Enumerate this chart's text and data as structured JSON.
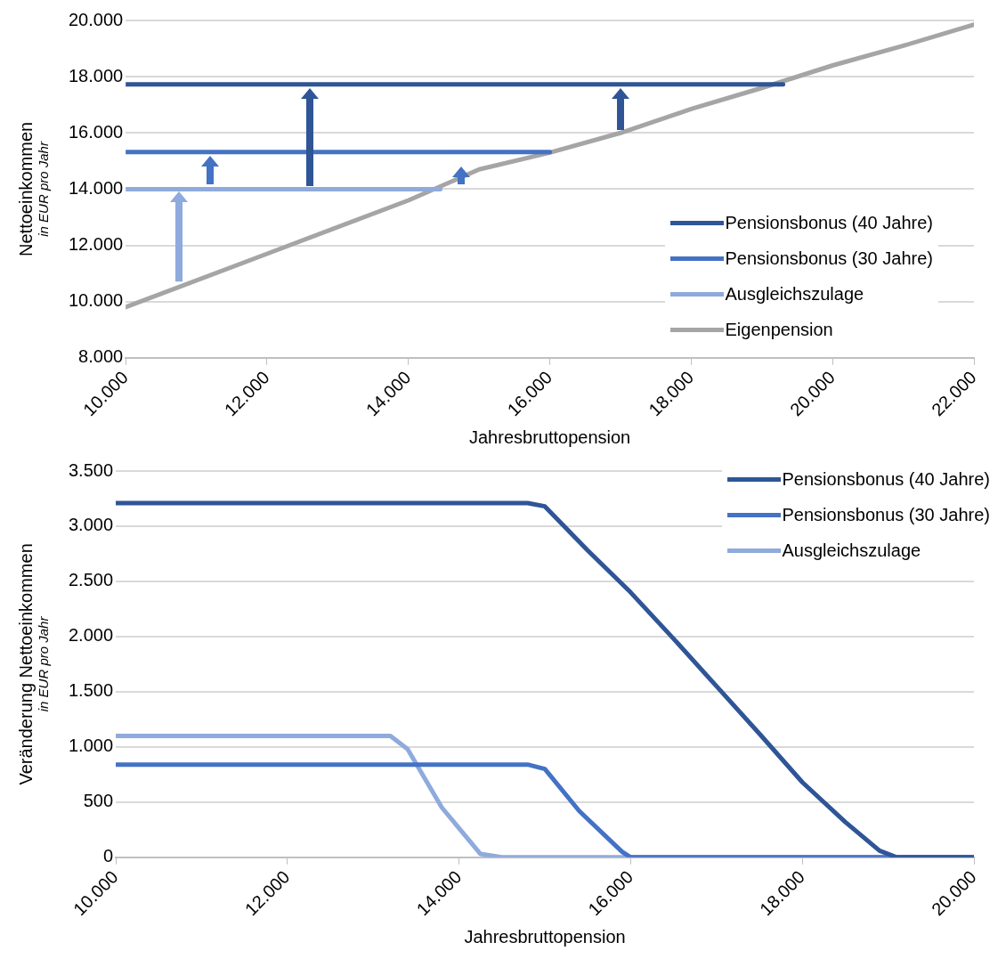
{
  "chart_data": [
    {
      "type": "line",
      "xlabel": "Jahresbruttopension",
      "ylabel": "Nettoeinkommen\nin EUR pro Jahr",
      "xlim": [
        10000,
        22000
      ],
      "xticks": [
        {
          "value": 10000,
          "label": "10.000"
        },
        {
          "value": 12000,
          "label": "12.000"
        },
        {
          "value": 14000,
          "label": "14.000"
        },
        {
          "value": 16000,
          "label": "16.000"
        },
        {
          "value": 18000,
          "label": "18.000"
        },
        {
          "value": 20000,
          "label": "20.000"
        },
        {
          "value": 22000,
          "label": "22.000"
        }
      ],
      "ylim": [
        8000,
        20000
      ],
      "yticks": [
        {
          "value": 8000,
          "label": "8.000"
        },
        {
          "value": 10000,
          "label": "10.000"
        },
        {
          "value": 12000,
          "label": "12.000"
        },
        {
          "value": 14000,
          "label": "14.000"
        },
        {
          "value": 16000,
          "label": "16.000"
        },
        {
          "value": 18000,
          "label": "18.000"
        },
        {
          "value": 20000,
          "label": "20.000"
        }
      ],
      "grid": "y",
      "legend": "bottom right",
      "marker": "none",
      "series": [
        {
          "name": "Pensionsbonus (40 Jahre)",
          "color": "#2f5597",
          "x": [
            10000,
            19300
          ],
          "values": [
            17730,
            17730
          ]
        },
        {
          "name": "Pensionsbonus (30 Jahre)",
          "color": "#4472c4",
          "x": [
            10000,
            16000
          ],
          "values": [
            15320,
            15320
          ]
        },
        {
          "name": "Ausgleichszulage",
          "color": "#8faadc",
          "x": [
            10000,
            14450
          ],
          "values": [
            14000,
            14000
          ]
        },
        {
          "name": "Eigenpension",
          "color": "#a5a5a5",
          "x": [
            10000,
            12000,
            14000,
            15000,
            16000,
            17000,
            18000,
            19000,
            20000,
            21000,
            22000
          ],
          "values": [
            9800,
            11700,
            13600,
            14700,
            15300,
            16000,
            16850,
            17600,
            18400,
            19100,
            19850
          ]
        }
      ]
    },
    {
      "type": "line",
      "xlabel": "Jahresbruttopension",
      "ylabel": "Veränderung Nettoeinkommen\nin EUR pro Jahr",
      "xlim": [
        10000,
        20000
      ],
      "xticks": [
        {
          "value": 10000,
          "label": "10.000"
        },
        {
          "value": 12000,
          "label": "12.000"
        },
        {
          "value": 14000,
          "label": "14.000"
        },
        {
          "value": 16000,
          "label": "16.000"
        },
        {
          "value": 18000,
          "label": "18.000"
        },
        {
          "value": 20000,
          "label": "20.000"
        }
      ],
      "ylim": [
        0,
        3500
      ],
      "yticks": [
        0,
        500,
        {
          "value": 1000,
          "label": "1.000"
        },
        {
          "value": 1500,
          "label": "1.500"
        },
        {
          "value": 2000,
          "label": "2.000"
        },
        {
          "value": 2500,
          "label": "2.500"
        },
        {
          "value": 3000,
          "label": "3.000"
        },
        {
          "value": 3500,
          "label": "3.500"
        }
      ],
      "grid": "y",
      "legend": "top right",
      "marker": "none",
      "series": [
        {
          "name": "Pensionsbonus (40 Jahre)",
          "color": "#2f5597",
          "x": [
            10000,
            14800,
            15000,
            15500,
            16000,
            16500,
            17000,
            17500,
            18000,
            18500,
            18900,
            19100,
            20000
          ],
          "values": [
            3210,
            3210,
            3180,
            2780,
            2400,
            1980,
            1550,
            1120,
            680,
            320,
            60,
            0,
            0
          ]
        },
        {
          "name": "Pensionsbonus (30 Jahre)",
          "color": "#4472c4",
          "x": [
            10000,
            14800,
            15000,
            15400,
            15900,
            16000,
            20000
          ],
          "values": [
            840,
            840,
            800,
            420,
            50,
            0,
            0
          ]
        },
        {
          "name": "Ausgleichszulage",
          "color": "#8faadc",
          "x": [
            10000,
            13200,
            13400,
            13800,
            14250,
            14500,
            20000
          ],
          "values": [
            1100,
            1100,
            980,
            450,
            30,
            0,
            0
          ]
        }
      ]
    }
  ]
}
